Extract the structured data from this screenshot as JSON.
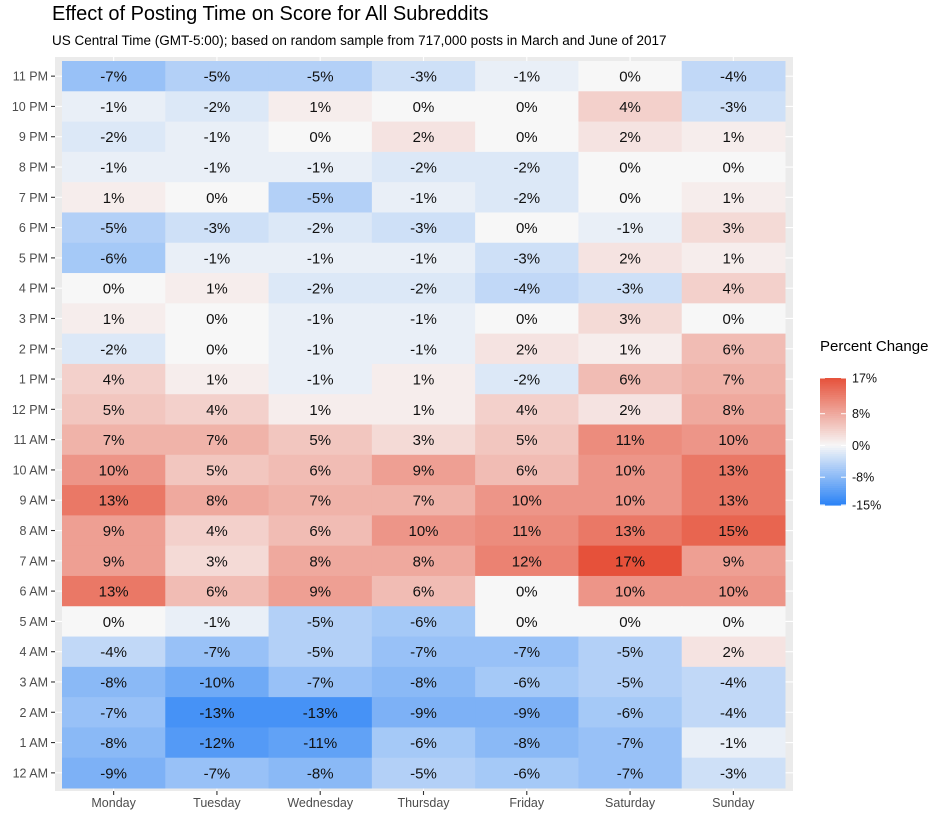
{
  "chart_data": {
    "type": "heatmap",
    "title": "Effect of Posting Time on Score for All Subreddits",
    "subtitle": "US Central Time (GMT-5:00); based on random sample from 717,000  posts in March and June of 2017",
    "xlabel": "",
    "ylabel": "",
    "x_categories": [
      "Monday",
      "Tuesday",
      "Wednesday",
      "Thursday",
      "Friday",
      "Saturday",
      "Sunday"
    ],
    "y_categories_top_to_bottom": [
      "11 PM",
      "10 PM",
      "9 PM",
      "8 PM",
      "7 PM",
      "6 PM",
      "5 PM",
      "4 PM",
      "3 PM",
      "2 PM",
      "1 PM",
      "12 PM",
      "11 AM",
      "10 AM",
      "9 AM",
      "8 AM",
      "7 AM",
      "6 AM",
      "5 AM",
      "4 AM",
      "3 AM",
      "2 AM",
      "1 AM",
      "12 AM"
    ],
    "values_percent": [
      [
        -7,
        -5,
        -5,
        -3,
        -1,
        0,
        -4
      ],
      [
        -1,
        -2,
        1,
        0,
        0,
        4,
        -3
      ],
      [
        -2,
        -1,
        0,
        2,
        0,
        2,
        1
      ],
      [
        -1,
        -1,
        -1,
        -2,
        -2,
        0,
        0
      ],
      [
        1,
        0,
        -5,
        -1,
        -2,
        0,
        1
      ],
      [
        -5,
        -3,
        -2,
        -3,
        0,
        -1,
        3
      ],
      [
        -6,
        -1,
        -1,
        -1,
        -3,
        2,
        1
      ],
      [
        0,
        1,
        -2,
        -2,
        -4,
        -3,
        4
      ],
      [
        1,
        0,
        -1,
        -1,
        0,
        3,
        0
      ],
      [
        -2,
        0,
        -1,
        -1,
        2,
        1,
        6
      ],
      [
        4,
        1,
        -1,
        1,
        -2,
        6,
        7
      ],
      [
        5,
        4,
        1,
        1,
        4,
        2,
        8
      ],
      [
        7,
        7,
        5,
        3,
        5,
        11,
        10
      ],
      [
        10,
        5,
        6,
        9,
        6,
        10,
        13
      ],
      [
        13,
        8,
        7,
        7,
        10,
        10,
        13
      ],
      [
        9,
        4,
        6,
        10,
        11,
        13,
        15
      ],
      [
        9,
        3,
        8,
        8,
        12,
        17,
        9
      ],
      [
        13,
        6,
        9,
        6,
        0,
        10,
        10
      ],
      [
        0,
        -1,
        -5,
        -6,
        0,
        0,
        0
      ],
      [
        -4,
        -7,
        -5,
        -7,
        -7,
        -5,
        2
      ],
      [
        -8,
        -10,
        -7,
        -8,
        -6,
        -5,
        -4
      ],
      [
        -7,
        -13,
        -13,
        -9,
        -9,
        -6,
        -4
      ],
      [
        -8,
        -12,
        -11,
        -6,
        -8,
        -7,
        -1
      ],
      [
        -9,
        -7,
        -8,
        -5,
        -6,
        -7,
        -3
      ]
    ],
    "label_suffix": "%",
    "color_scale": {
      "type": "diverging",
      "low_color": "#2B83F6",
      "mid_color": "#F7F7F7",
      "high_color": "#E6513A",
      "min": -15,
      "mid": 0,
      "max": 17
    },
    "legend": {
      "title": "Percent Change",
      "ticks": [
        17,
        8,
        0,
        -8,
        -15
      ],
      "tick_labels": [
        "17%",
        "8%",
        "0%",
        "-8%",
        "-15%"
      ],
      "placement": "right"
    },
    "panel_background": "#EBEBEB",
    "grid": true
  }
}
